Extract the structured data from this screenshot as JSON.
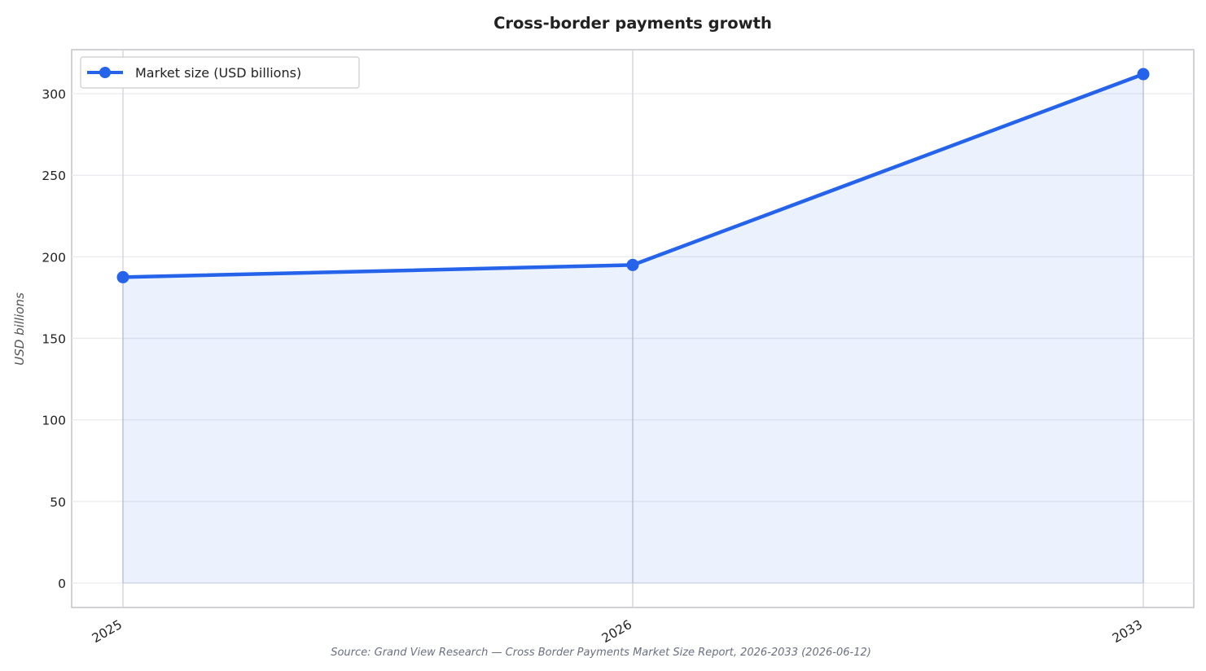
{
  "chart_data": {
    "type": "line",
    "title": "Cross-border payments growth",
    "xlabel": "",
    "ylabel": "USD billions",
    "categories": [
      "2025",
      "2026",
      "2033"
    ],
    "series": [
      {
        "name": "Market size (USD billions)",
        "values": [
          187.5,
          195.0,
          312.0
        ],
        "color": "#2563eb"
      }
    ],
    "ylim": [
      -15,
      327
    ],
    "yticks": [
      0,
      50,
      100,
      150,
      200,
      250,
      300
    ],
    "grid": true,
    "area_fill": true,
    "legend_position": "top-left",
    "source": "Source: Grand View Research — Cross Border Payments Market Size Report, 2026-2033 (2026-06-12)"
  }
}
